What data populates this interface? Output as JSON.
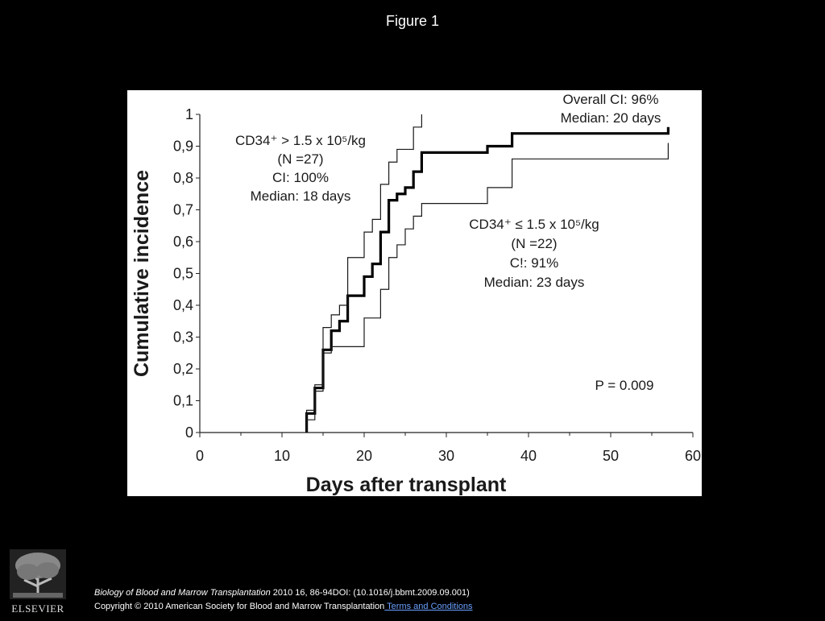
{
  "figure_title": "Figure 1",
  "chart_data": {
    "type": "line",
    "step": true,
    "xlabel": "Days after transplant",
    "ylabel": "Cumulative incidence",
    "xlim": [
      0,
      60
    ],
    "ylim": [
      0,
      1
    ],
    "x_ticks": [
      0,
      10,
      20,
      30,
      40,
      50,
      60
    ],
    "x_tick_labels": [
      "0",
      "10",
      "20",
      "30",
      "40",
      "50",
      "60"
    ],
    "y_ticks": [
      0,
      0.1,
      0.2,
      0.3,
      0.4,
      0.5,
      0.6,
      0.7,
      0.8,
      0.9,
      1
    ],
    "y_tick_labels": [
      "0",
      "0,1",
      "0,2",
      "0,3",
      "0,4",
      "0,5",
      "0,6",
      "0,7",
      "0,8",
      "0,9",
      "1"
    ],
    "grid": false,
    "legend": "none",
    "series": [
      {
        "annotation": [
          "Overall CI: 96%",
          "Median: 20 days"
        ],
        "color": "#000000",
        "weight": "bold",
        "x": [
          13,
          14,
          15,
          16,
          17,
          18,
          20,
          21,
          22,
          23,
          24,
          25,
          26,
          27,
          35,
          38,
          57
        ],
        "y": [
          0.06,
          0.14,
          0.26,
          0.32,
          0.35,
          0.43,
          0.49,
          0.53,
          0.63,
          0.73,
          0.75,
          0.77,
          0.82,
          0.88,
          0.9,
          0.94,
          0.96
        ]
      },
      {
        "annotation": [
          "CD34⁺ > 1.5 x 10⁵/kg",
          "(N =27)",
          "CI: 100%",
          "Median: 18 days"
        ],
        "color": "#1a1a1a",
        "weight": "thin",
        "x": [
          13,
          14,
          15,
          16,
          17,
          18,
          20,
          21,
          22,
          23,
          24,
          26,
          27
        ],
        "y": [
          0.07,
          0.15,
          0.33,
          0.37,
          0.4,
          0.55,
          0.63,
          0.67,
          0.78,
          0.85,
          0.89,
          0.96,
          1.0
        ]
      },
      {
        "annotation": [
          "CD34⁺ ≤ 1.5 x 10⁵/kg",
          "(N =22)",
          "C!: 91%",
          "Median: 23 days"
        ],
        "color": "#1a1a1a",
        "weight": "thin",
        "x": [
          13,
          14,
          15,
          16,
          20,
          22,
          23,
          24,
          25,
          26,
          27,
          35,
          38,
          57
        ],
        "y": [
          0.04,
          0.13,
          0.25,
          0.27,
          0.36,
          0.45,
          0.55,
          0.59,
          0.64,
          0.68,
          0.72,
          0.77,
          0.86,
          0.91
        ]
      }
    ],
    "p_value": "P = 0.009"
  },
  "footer": {
    "logo_text": "ELSEVIER",
    "journal": "Biology of Blood and Marrow Transplantation",
    "citation": " 2010 16, 86-94DOI: (10.1016/j.bbmt.2009.09.001)",
    "copyright": "Copyright © 2010 American Society for Blood and Marrow Transplantation",
    "terms": " Terms and Conditions"
  }
}
